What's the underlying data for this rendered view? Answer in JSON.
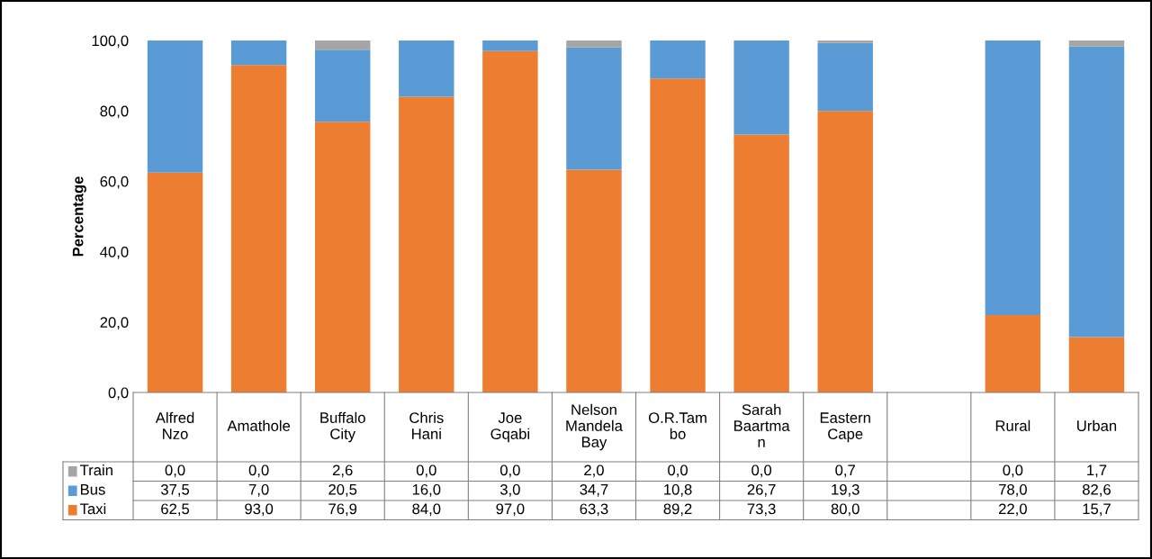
{
  "chart_data": {
    "type": "bar",
    "stacked": true,
    "ylabel": "Percentage",
    "legend": "bottom",
    "grid": false,
    "categories": [
      "Alfred\nNzo",
      "Amathole",
      "Buffalo\nCity",
      "Chris\nHani",
      "Joe\nGqabi",
      "Nelson\nMandela\nBay",
      "O.R.Tam\nbo",
      "Sarah\nBaartma\nn",
      "Eastern\nCape",
      null,
      "Rural",
      "Urban"
    ],
    "ylim": [
      0,
      100
    ],
    "yticks": [
      {
        "value": 0,
        "label": "0,0"
      },
      {
        "value": 20,
        "label": "20,0"
      },
      {
        "value": 40,
        "label": "40,0"
      },
      {
        "value": 60,
        "label": "60,0"
      },
      {
        "value": 80,
        "label": "80,0"
      },
      {
        "value": 100,
        "label": "100,0"
      }
    ],
    "series": [
      {
        "name": "Taxi",
        "color": "#ed7d31",
        "values": [
          62.5,
          93.0,
          76.9,
          84.0,
          97.0,
          63.3,
          89.2,
          73.3,
          80.0,
          null,
          22.0,
          15.7
        ],
        "value_labels": [
          "62,5",
          "93,0",
          "76,9",
          "84,0",
          "97,0",
          "63,3",
          "89,2",
          "73,3",
          "80,0",
          null,
          "22,0",
          "15,7"
        ]
      },
      {
        "name": "Bus",
        "color": "#5b9bd5",
        "values": [
          37.5,
          7.0,
          20.5,
          16.0,
          3.0,
          34.7,
          10.8,
          26.7,
          19.3,
          null,
          78.0,
          82.6
        ],
        "value_labels": [
          "37,5",
          "7,0",
          "20,5",
          "16,0",
          "3,0",
          "34,7",
          "10,8",
          "26,7",
          "19,3",
          null,
          "78,0",
          "82,6"
        ]
      },
      {
        "name": "Train",
        "color": "#a5a5a5",
        "values": [
          0.0,
          0.0,
          2.6,
          0.0,
          0.0,
          2.0,
          0.0,
          0.0,
          0.7,
          null,
          0.0,
          1.7
        ],
        "value_labels": [
          "0,0",
          "0,0",
          "2,6",
          "0,0",
          "0,0",
          "2,0",
          "0,0",
          "0,0",
          "0,7",
          null,
          "0,0",
          "1,7"
        ]
      }
    ]
  }
}
